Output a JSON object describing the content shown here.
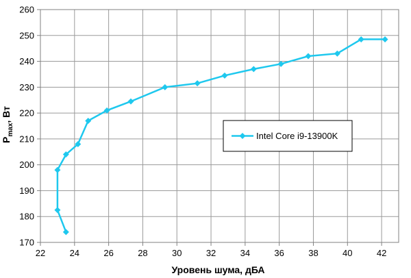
{
  "chart_data": {
    "type": "line",
    "xlabel": "Уровень шума, дБА",
    "ylabel_main": "P",
    "ylabel_sub": "max",
    "ylabel_rest": ", Вт",
    "xlim": [
      22,
      43
    ],
    "ylim": [
      170,
      260
    ],
    "x_ticks": [
      "22",
      "24",
      "26",
      "28",
      "30",
      "32",
      "34",
      "36",
      "38",
      "40",
      "42"
    ],
    "y_ticks": [
      "170",
      "180",
      "190",
      "200",
      "210",
      "220",
      "230",
      "240",
      "250",
      "260"
    ],
    "grid": true,
    "legend_position": "center-right",
    "series": [
      {
        "name": "Intel Core i9-13900K",
        "color": "#1ec8ee",
        "marker": "diamond",
        "points": [
          {
            "x": 23.5,
            "y": 174
          },
          {
            "x": 23.0,
            "y": 182.5
          },
          {
            "x": 23.0,
            "y": 198
          },
          {
            "x": 23.5,
            "y": 204
          },
          {
            "x": 24.2,
            "y": 208
          },
          {
            "x": 24.8,
            "y": 217
          },
          {
            "x": 25.9,
            "y": 221
          },
          {
            "x": 27.3,
            "y": 224.5
          },
          {
            "x": 29.3,
            "y": 230
          },
          {
            "x": 31.2,
            "y": 231.5
          },
          {
            "x": 32.8,
            "y": 234.5
          },
          {
            "x": 34.5,
            "y": 237
          },
          {
            "x": 36.1,
            "y": 239
          },
          {
            "x": 37.7,
            "y": 242
          },
          {
            "x": 39.4,
            "y": 243
          },
          {
            "x": 40.8,
            "y": 248.5
          },
          {
            "x": 42.2,
            "y": 248.5
          }
        ]
      }
    ]
  }
}
